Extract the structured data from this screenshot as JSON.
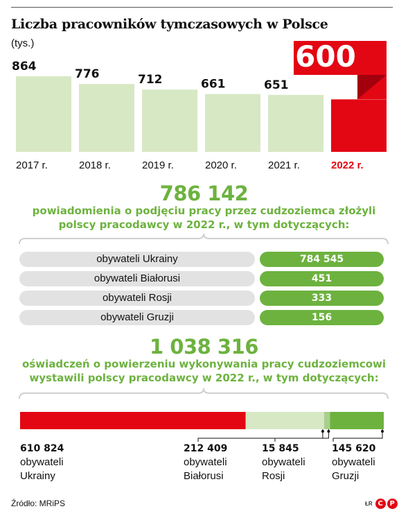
{
  "chart_data": [
    {
      "type": "bar",
      "title": "Liczba pracowników tymczasowych w Polsce",
      "unit": "(tys.)",
      "categories": [
        "2017 r.",
        "2018 r.",
        "2019 r.",
        "2020 r.",
        "2021 r.",
        "2022 r."
      ],
      "values": [
        864,
        776,
        712,
        661,
        651,
        600
      ],
      "value_labels": [
        "864",
        "776",
        "712",
        "661",
        "651",
        "600"
      ],
      "highlight_category": "2022 r.",
      "ylim": [
        0,
        864
      ],
      "grid": false
    },
    {
      "type": "table",
      "total": "786 142",
      "description": [
        "powiadomienia o podjęciu pracy przez cudzoziemca złożyli",
        "polscy pracodawcy w 2022 r., w tym dotyczących:"
      ],
      "rows": [
        {
          "label": "obywateli Ukrainy",
          "value": "784 545"
        },
        {
          "label": "obywateli Białorusi",
          "value": "451"
        },
        {
          "label": "obywateli Rosji",
          "value": "333"
        },
        {
          "label": "obywateli Gruzji",
          "value": "156"
        }
      ]
    },
    {
      "type": "bar",
      "orientation": "horizontal-stacked",
      "total": "1 038 316",
      "description": [
        "oświadczeń o powierzeniu wykonywania pracy cudzoziemcowi",
        "wystawili polscy pracodawcy w 2022 r., w tym dotyczących:"
      ],
      "segments": [
        {
          "value": 610824,
          "value_label": "610 824",
          "lines": [
            "obywateli",
            "Ukrainy"
          ],
          "color": "#e30613"
        },
        {
          "value": 212409,
          "value_label": "212 409",
          "lines": [
            "obywateli",
            "Białorusi"
          ],
          "color": "#d7e8c4"
        },
        {
          "value": 15845,
          "value_label": "15 845",
          "lines": [
            "obywateli",
            "Rosji"
          ],
          "color": "#a9cf8c"
        },
        {
          "value": 145620,
          "value_label": "145 620",
          "lines": [
            "obywateli",
            "Gruzji"
          ],
          "color": "#6db23f"
        }
      ]
    }
  ],
  "colors": {
    "bar_light_green": "#d7e8c4",
    "accent_green": "#6db23f",
    "accent_red": "#e30613",
    "pill_grey": "#e2e2e2"
  },
  "footer": {
    "source": "Źródło: MRiPS",
    "initials": "ŁR",
    "logo_letters": [
      "C",
      "P"
    ]
  }
}
